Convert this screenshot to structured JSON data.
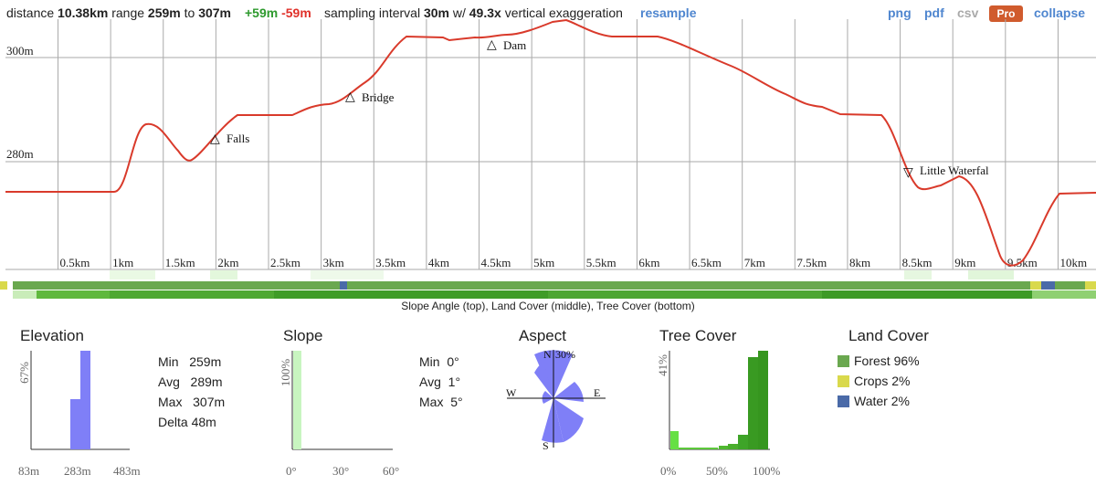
{
  "topbar": {
    "distance_label": "distance",
    "distance_value": "10.38km",
    "range_label": "range",
    "range_min": "259m",
    "range_to": "to",
    "range_max": "307m",
    "gain": "+59m",
    "loss": "-59m",
    "interval_label": "sampling interval",
    "interval_value": "30m",
    "exag_label": "w/",
    "exag_value": "49.3x",
    "exag_suffix": "vertical exaggeration",
    "resample": "resample",
    "png": "png",
    "pdf": "pdf",
    "csv": "csv",
    "pro": "Pro",
    "collapse": "collapse"
  },
  "profile": {
    "y_labels": [
      "300m",
      "280m"
    ],
    "x_labels": [
      "0.5km",
      "1km",
      "1.5km",
      "2km",
      "2.5km",
      "3km",
      "3.5km",
      "4km",
      "4.5km",
      "5km",
      "5.5km",
      "6km",
      "6.5km",
      "7km",
      "7.5km",
      "8km",
      "8.5km",
      "9km",
      "9.5km",
      "10km"
    ],
    "line_color": "#d93a2b",
    "markers": [
      {
        "label": "Falls",
        "symbol": "△"
      },
      {
        "label": "Bridge",
        "symbol": "△"
      },
      {
        "label": "Dam",
        "symbol": "△"
      },
      {
        "label": "Little Waterfal",
        "symbol": "▽"
      }
    ]
  },
  "strip_caption": "Slope Angle (top), Land Cover (middle), Tree Cover (bottom)",
  "elevation": {
    "title": "Elevation",
    "y_max": "67%",
    "x_labels": [
      "83m",
      "283m",
      "483m"
    ],
    "stats": [
      {
        "label": "Min",
        "value": "259m"
      },
      {
        "label": "Avg",
        "value": "289m"
      },
      {
        "label": "Max",
        "value": "307m"
      },
      {
        "label": "Delta",
        "value": "48m"
      }
    ]
  },
  "slope": {
    "title": "Slope",
    "y_max": "100%",
    "x_labels": [
      "0°",
      "30°",
      "60°"
    ],
    "stats": [
      {
        "label": "Min",
        "value": "0°"
      },
      {
        "label": "Avg",
        "value": "1°"
      },
      {
        "label": "Max",
        "value": "5°"
      }
    ]
  },
  "aspect": {
    "title": "Aspect",
    "n": "N",
    "s": "S",
    "e": "E",
    "w": "W",
    "max_pct": "30%"
  },
  "tree_cover": {
    "title": "Tree Cover",
    "y_max": "41%",
    "x_labels": [
      "0%",
      "50%",
      "100%"
    ]
  },
  "land_cover": {
    "title": "Land Cover",
    "items": [
      {
        "label": "Forest 96%",
        "color": "#6aa84f"
      },
      {
        "label": "Crops 2%",
        "color": "#d9d94c"
      },
      {
        "label": "Water 2%",
        "color": "#4a6aa8"
      }
    ]
  }
}
